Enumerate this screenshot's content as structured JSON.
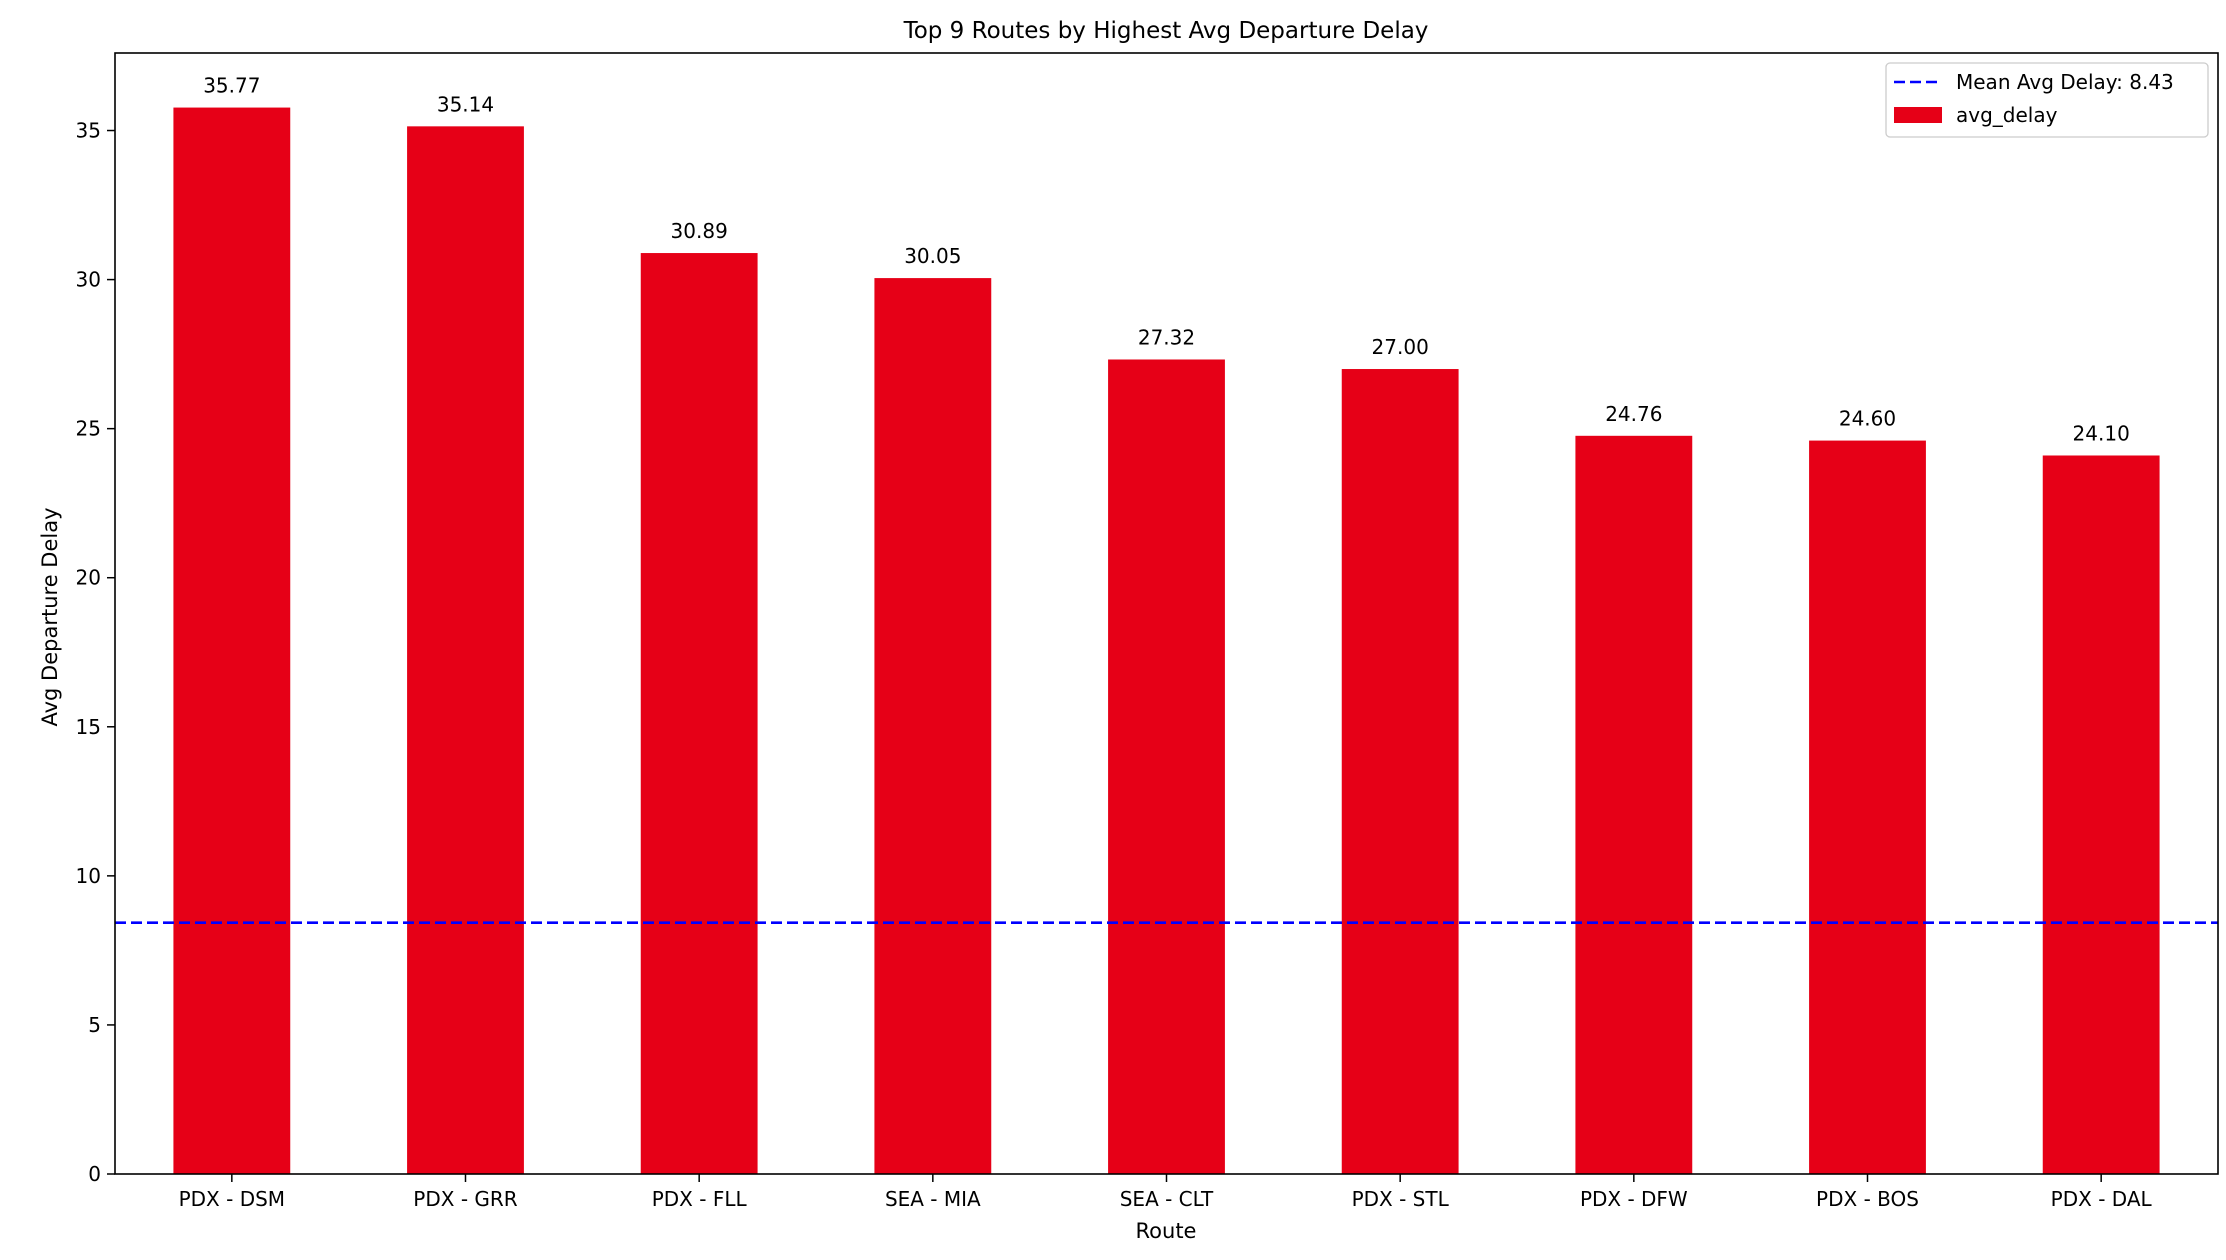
{
  "chart_data": {
    "type": "bar",
    "title": "Top 9 Routes by Highest Avg Departure Delay",
    "xlabel": "Route",
    "ylabel": "Avg Departure Delay",
    "categories": [
      "PDX - DSM",
      "PDX - GRR",
      "PDX - FLL",
      "SEA - MIA",
      "SEA - CLT",
      "PDX - STL",
      "PDX - DFW",
      "PDX - BOS",
      "PDX - DAL"
    ],
    "series": [
      {
        "name": "avg_delay",
        "values": [
          35.77,
          35.14,
          30.89,
          30.05,
          27.32,
          27.0,
          24.76,
          24.6,
          24.1
        ],
        "data_labels": [
          "35.77",
          "35.14",
          "30.89",
          "30.05",
          "27.32",
          "27.00",
          "24.76",
          "24.60",
          "24.10"
        ],
        "color": "#e60017"
      }
    ],
    "reference_line": {
      "value": 8.43,
      "label": "Mean Avg Delay: 8.43",
      "color": "#0000ff",
      "style": "dashed"
    },
    "ylim": [
      0,
      37.6
    ],
    "yticks": [
      0,
      5,
      10,
      15,
      20,
      25,
      30,
      35
    ],
    "grid": false,
    "legend_position": "top-right"
  }
}
